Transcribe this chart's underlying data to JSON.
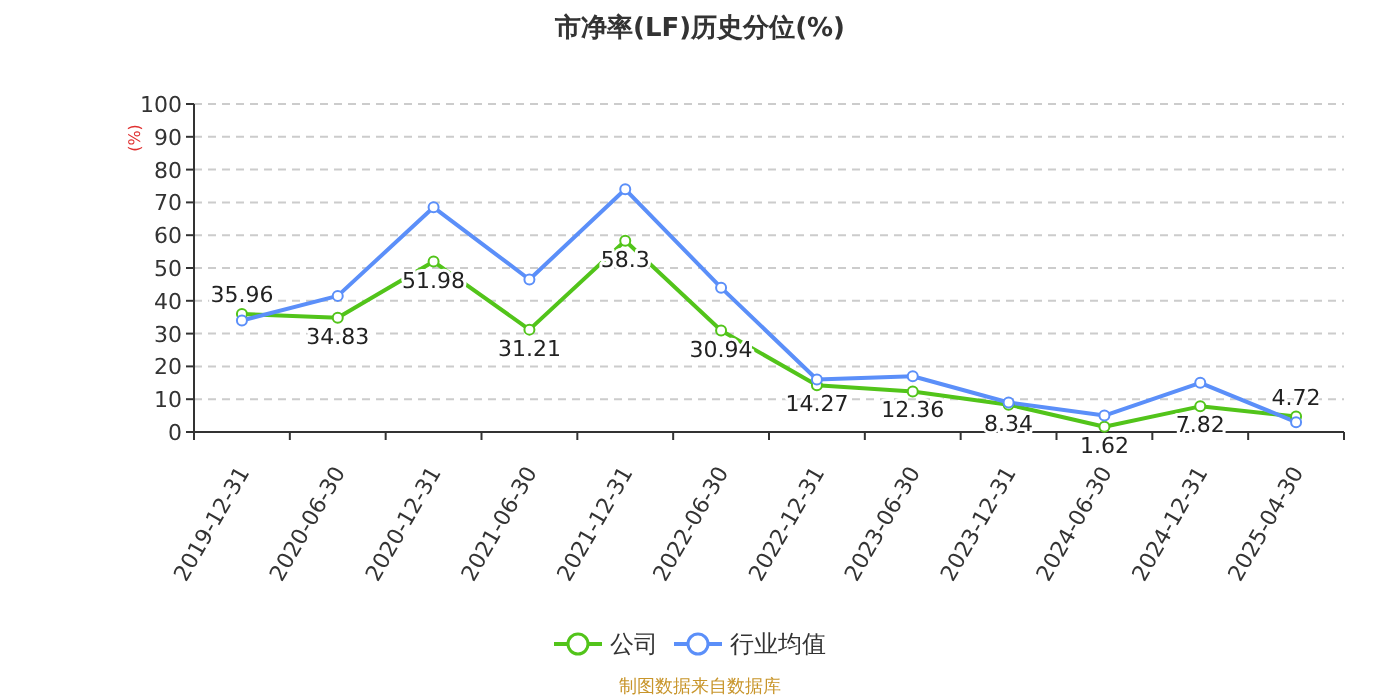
{
  "chart_data": {
    "type": "line",
    "title": "市净率(LF)历史分位(%)",
    "ylabel": "(%)",
    "categories": [
      "2019-12-31",
      "2020-06-30",
      "2020-12-31",
      "2021-06-30",
      "2021-12-31",
      "2022-06-30",
      "2022-12-31",
      "2023-06-30",
      "2023-12-31",
      "2024-06-30",
      "2024-12-31",
      "2025-04-30"
    ],
    "series": [
      {
        "name": "公司",
        "color": "#52c41a",
        "values": [
          35.96,
          34.83,
          51.98,
          31.21,
          58.3,
          30.94,
          14.27,
          12.36,
          8.34,
          1.62,
          7.82,
          4.72
        ],
        "value_labels": [
          "35.96",
          "34.83",
          "51.98",
          "31.21",
          "58.3",
          "30.94",
          "14.27",
          "12.36",
          "8.34",
          "1.62",
          "7.82",
          "4.72"
        ]
      },
      {
        "name": "行业均值",
        "color": "#5b8ff9",
        "values": [
          34,
          41.5,
          68.5,
          46.5,
          74,
          44,
          16,
          17,
          9,
          5,
          15,
          3
        ]
      }
    ],
    "ylim": [
      0,
      100
    ],
    "yticks": [
      0,
      10,
      20,
      30,
      40,
      50,
      60,
      70,
      80,
      90,
      100
    ],
    "grid": "y",
    "legend": "bottom",
    "marker": "circle",
    "line_style": "solid",
    "annotations": [
      "制图数据来自数据库"
    ]
  }
}
